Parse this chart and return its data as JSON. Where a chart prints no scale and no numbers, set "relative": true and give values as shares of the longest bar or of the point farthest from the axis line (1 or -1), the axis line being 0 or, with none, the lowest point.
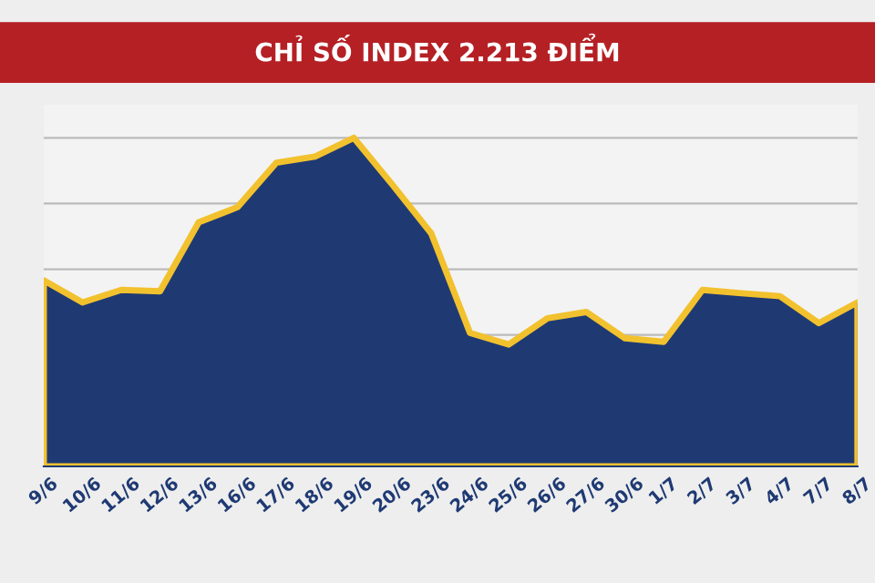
{
  "chart_data": {
    "type": "area",
    "title": "CHỈ SỐ INDEX 2.213 ĐIỂM",
    "relative": true,
    "grid": "y",
    "marker": "none",
    "categories": [
      "9/6",
      "10/6",
      "11/6",
      "12/6",
      "13/6",
      "16/6",
      "17/6",
      "18/6",
      "19/6",
      "20/6",
      "23/6",
      "24/6",
      "25/6",
      "26/6",
      "27/6",
      "30/6",
      "1/7",
      "2/7",
      "3/7",
      "4/7",
      "7/7",
      "8/7"
    ],
    "series": [
      {
        "color": "#1f3a73",
        "values": [
          0.566,
          0.499,
          0.537,
          0.533,
          0.743,
          0.789,
          0.924,
          0.943,
          1,
          0.857,
          0.709,
          0.406,
          0.371,
          0.451,
          0.47,
          0.39,
          0.379,
          0.537,
          0.527,
          0.518,
          0.436,
          0.499
        ]
      }
    ]
  }
}
